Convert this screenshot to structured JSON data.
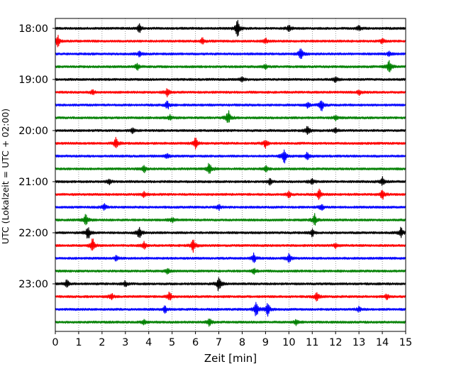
{
  "chart_data": {
    "type": "line",
    "title": "",
    "xlabel": "Zeit  [min]",
    "ylabel": "UTC (Lokalzeit = UTC + 02:00)",
    "xlim": [
      0,
      15
    ],
    "x_ticks": [
      0,
      1,
      2,
      3,
      4,
      5,
      6,
      7,
      8,
      9,
      10,
      11,
      12,
      13,
      14,
      15
    ],
    "y_tick_labels": [
      "18:00",
      "19:00",
      "20:00",
      "21:00",
      "22:00",
      "23:00"
    ],
    "y_tick_times": [
      "18:00",
      "19:00",
      "20:00",
      "21:00",
      "22:00",
      "23:00"
    ],
    "trace_interval_minutes": 15,
    "grid": "vertical dotted",
    "color_cycle": [
      "#000000",
      "#ff0000",
      "#0000ff",
      "#008000"
    ],
    "series": [
      {
        "start": "18:00",
        "events": [
          [
            7.8,
            1.0
          ],
          [
            3.6,
            0.5
          ],
          [
            10.0,
            0.4
          ],
          [
            13.0,
            0.3
          ]
        ]
      },
      {
        "start": "18:15",
        "events": [
          [
            0.1,
            0.7
          ],
          [
            6.3,
            0.4
          ],
          [
            9.0,
            0.3
          ],
          [
            14.0,
            0.3
          ]
        ]
      },
      {
        "start": "18:30",
        "events": [
          [
            10.5,
            0.8
          ],
          [
            3.6,
            0.3
          ],
          [
            14.3,
            0.3
          ]
        ]
      },
      {
        "start": "18:45",
        "events": [
          [
            14.3,
            0.8
          ],
          [
            3.5,
            0.5
          ],
          [
            9.0,
            0.3
          ]
        ]
      },
      {
        "start": "19:00",
        "events": [
          [
            8.0,
            0.3
          ],
          [
            12.0,
            0.3
          ]
        ]
      },
      {
        "start": "19:15",
        "events": [
          [
            4.8,
            0.5
          ],
          [
            1.6,
            0.3
          ],
          [
            13.0,
            0.3
          ]
        ]
      },
      {
        "start": "19:30",
        "events": [
          [
            11.4,
            0.7
          ],
          [
            4.8,
            0.5
          ],
          [
            10.8,
            0.3
          ]
        ]
      },
      {
        "start": "19:45",
        "events": [
          [
            7.4,
            0.9
          ],
          [
            4.9,
            0.3
          ],
          [
            12.0,
            0.3
          ]
        ]
      },
      {
        "start": "20:00",
        "events": [
          [
            10.8,
            0.6
          ],
          [
            3.3,
            0.3
          ],
          [
            12.0,
            0.3
          ]
        ]
      },
      {
        "start": "20:15",
        "events": [
          [
            2.6,
            0.7
          ],
          [
            6.0,
            0.6
          ],
          [
            9.0,
            0.5
          ]
        ]
      },
      {
        "start": "20:30",
        "events": [
          [
            9.8,
            1.0
          ],
          [
            10.8,
            0.5
          ],
          [
            4.8,
            0.3
          ]
        ]
      },
      {
        "start": "20:45",
        "events": [
          [
            6.6,
            0.8
          ],
          [
            3.8,
            0.5
          ],
          [
            9.0,
            0.4
          ]
        ]
      },
      {
        "start": "21:00",
        "events": [
          [
            14.0,
            0.5
          ],
          [
            11.0,
            0.4
          ],
          [
            9.2,
            0.4
          ],
          [
            2.3,
            0.3
          ]
        ]
      },
      {
        "start": "21:15",
        "events": [
          [
            11.3,
            0.7
          ],
          [
            14.0,
            0.6
          ],
          [
            10.0,
            0.4
          ],
          [
            3.8,
            0.3
          ]
        ]
      },
      {
        "start": "21:30",
        "events": [
          [
            2.1,
            0.4
          ],
          [
            11.4,
            0.4
          ],
          [
            7.0,
            0.3
          ]
        ]
      },
      {
        "start": "21:45",
        "events": [
          [
            1.3,
            0.8
          ],
          [
            11.1,
            0.7
          ],
          [
            5.0,
            0.3
          ]
        ]
      },
      {
        "start": "22:00",
        "events": [
          [
            1.4,
            0.9
          ],
          [
            3.6,
            0.8
          ],
          [
            14.8,
            0.6
          ],
          [
            11.0,
            0.4
          ]
        ]
      },
      {
        "start": "22:15",
        "events": [
          [
            1.6,
            0.9
          ],
          [
            5.9,
            0.8
          ],
          [
            3.8,
            0.4
          ],
          [
            12.0,
            0.3
          ]
        ]
      },
      {
        "start": "22:30",
        "events": [
          [
            8.5,
            0.6
          ],
          [
            10.0,
            0.5
          ],
          [
            2.6,
            0.3
          ]
        ]
      },
      {
        "start": "22:45",
        "events": [
          [
            4.8,
            0.3
          ],
          [
            8.5,
            0.3
          ]
        ]
      },
      {
        "start": "23:00",
        "events": [
          [
            7.0,
            0.9
          ],
          [
            0.5,
            0.5
          ],
          [
            3.0,
            0.3
          ]
        ]
      },
      {
        "start": "23:15",
        "events": [
          [
            4.9,
            0.6
          ],
          [
            11.2,
            0.6
          ],
          [
            2.4,
            0.4
          ],
          [
            14.2,
            0.3
          ]
        ]
      },
      {
        "start": "23:30",
        "events": [
          [
            8.6,
            0.9
          ],
          [
            9.1,
            0.8
          ],
          [
            4.7,
            0.4
          ],
          [
            13.0,
            0.3
          ]
        ]
      },
      {
        "start": "23:45",
        "events": [
          [
            6.6,
            0.5
          ],
          [
            10.3,
            0.3
          ],
          [
            3.8,
            0.3
          ]
        ]
      }
    ]
  }
}
